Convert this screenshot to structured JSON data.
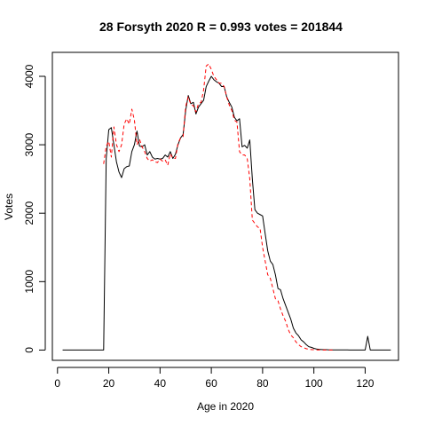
{
  "chart_data": {
    "type": "line",
    "title": "28 Forsyth 2020 R = 0.993 votes = 201844",
    "xlabel": "Age in 2020",
    "ylabel": "Votes",
    "xlim": [
      -2,
      133
    ],
    "ylim": [
      -150,
      4350
    ],
    "xticks": [
      0,
      20,
      40,
      60,
      80,
      100,
      120
    ],
    "yticks": [
      0,
      1000,
      2000,
      3000,
      4000
    ],
    "grid": false,
    "legend": "none",
    "series": [
      {
        "color": "#000000",
        "style": "solid",
        "x": [
          2,
          18,
          19,
          20,
          21,
          22,
          23,
          24,
          25,
          26,
          27,
          28,
          29,
          30,
          31,
          32,
          33,
          34,
          35,
          36,
          37,
          38,
          39,
          40,
          41,
          42,
          43,
          44,
          45,
          46,
          47,
          48,
          49,
          50,
          51,
          52,
          53,
          54,
          55,
          56,
          57,
          58,
          59,
          60,
          61,
          62,
          63,
          64,
          65,
          66,
          67,
          68,
          69,
          70,
          71,
          72,
          73,
          74,
          75,
          76,
          77,
          78,
          79,
          80,
          81,
          82,
          83,
          84,
          85,
          86,
          87,
          88,
          89,
          90,
          91,
          92,
          93,
          94,
          95,
          96,
          97,
          98,
          99,
          100,
          101,
          102,
          103,
          104,
          105,
          106,
          107,
          108,
          109,
          110,
          111,
          112,
          113,
          114,
          115,
          116,
          117,
          118,
          119,
          120,
          121,
          122,
          130
        ],
        "values": [
          0,
          0,
          2800,
          3220,
          3250,
          3000,
          2750,
          2600,
          2520,
          2650,
          2680,
          2690,
          2900,
          3000,
          3200,
          2980,
          2970,
          3000,
          2850,
          2900,
          2820,
          2790,
          2800,
          2790,
          2800,
          2850,
          2820,
          2900,
          2800,
          2860,
          3000,
          3100,
          3150,
          3500,
          3720,
          3600,
          3620,
          3450,
          3550,
          3600,
          3650,
          3850,
          3930,
          4000,
          3950,
          3920,
          3900,
          3850,
          3850,
          3700,
          3620,
          3550,
          3400,
          3350,
          3380,
          2970,
          2990,
          2950,
          3070,
          2500,
          2050,
          2000,
          1980,
          1960,
          1700,
          1450,
          1300,
          1250,
          1100,
          900,
          880,
          750,
          650,
          550,
          450,
          320,
          250,
          210,
          150,
          120,
          80,
          50,
          40,
          25,
          15,
          10,
          8,
          5,
          5,
          3,
          3,
          2,
          2,
          2,
          2,
          2,
          2,
          1,
          1,
          1,
          1,
          1,
          1,
          1,
          200,
          0,
          0
        ]
      },
      {
        "color": "#ff0000",
        "style": "dashed",
        "x": [
          18,
          19,
          20,
          21,
          22,
          23,
          24,
          25,
          26,
          27,
          28,
          29,
          30,
          31,
          32,
          33,
          34,
          35,
          36,
          37,
          38,
          39,
          40,
          41,
          42,
          43,
          44,
          45,
          46,
          47,
          48,
          49,
          50,
          51,
          52,
          53,
          54,
          55,
          56,
          57,
          58,
          59,
          60,
          61,
          62,
          63,
          64,
          65,
          66,
          67,
          68,
          69,
          70,
          71,
          72,
          73,
          74,
          75,
          76,
          77,
          78,
          79,
          80,
          81,
          82,
          83,
          84,
          85,
          86,
          87,
          88,
          89,
          90,
          91,
          92,
          93,
          94,
          95,
          96,
          97,
          98,
          99,
          100,
          101,
          102,
          103,
          104,
          105,
          106,
          107,
          108
        ],
        "values": [
          2720,
          2980,
          3050,
          2820,
          3260,
          3000,
          2900,
          3000,
          3300,
          3380,
          3300,
          3520,
          3360,
          3000,
          3080,
          2970,
          2900,
          2800,
          2760,
          2780,
          2750,
          2740,
          2790,
          2760,
          2780,
          2700,
          2870,
          2800,
          2800,
          3020,
          3100,
          3120,
          3560,
          3700,
          3590,
          3570,
          3480,
          3600,
          3620,
          3800,
          4150,
          4180,
          4100,
          4000,
          3950,
          3900,
          3900,
          3850,
          3700,
          3580,
          3500,
          3360,
          3330,
          2900,
          2850,
          2850,
          2800,
          2500,
          1900,
          1850,
          1800,
          1780,
          1500,
          1300,
          1100,
          1050,
          900,
          750,
          720,
          600,
          500,
          420,
          300,
          220,
          180,
          120,
          80,
          50,
          35,
          20,
          12,
          8,
          5,
          3,
          2,
          2,
          1,
          1,
          1,
          1,
          0
        ]
      }
    ]
  }
}
